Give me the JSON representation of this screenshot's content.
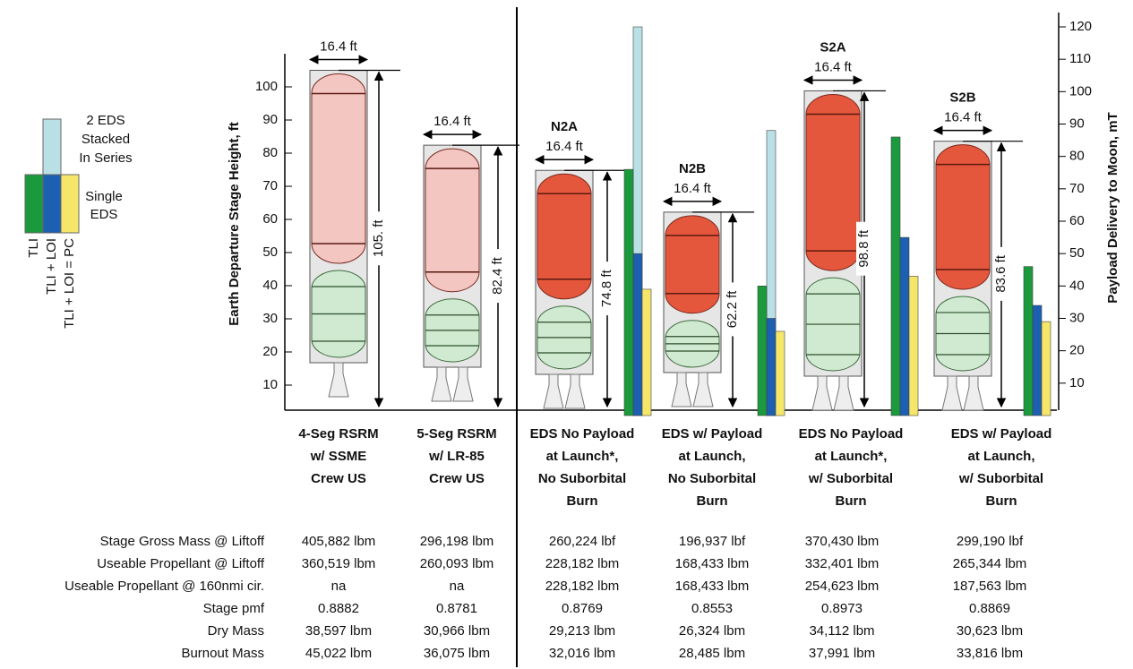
{
  "legend": {
    "stacked": [
      "2 EDS",
      "Stacked",
      "In Series"
    ],
    "single": [
      "Single",
      "EDS"
    ],
    "tli": "TLI",
    "tli_loi": "TLI + LOI",
    "tli_loi_pc": "TLI + LOI = PC",
    "colors": {
      "tli": "#1a9a3c",
      "tli_loi": "#1d5fb0",
      "pc": "#f5e66a",
      "stacked": "#b9e0e4"
    }
  },
  "left_axis": {
    "label": "Earth Departure Stage Height, ft",
    "ylim": [
      0,
      110
    ],
    "yticks": [
      10,
      20,
      30,
      40,
      50,
      60,
      70,
      80,
      90,
      100
    ]
  },
  "right_axis": {
    "label": "Payload Delivery to Moon, mT",
    "ylim": [
      0,
      120
    ],
    "yticks": [
      10,
      20,
      30,
      40,
      50,
      60,
      70,
      80,
      90,
      100,
      110,
      120
    ]
  },
  "vehicles": [
    {
      "diameter_label": "16.4 ft",
      "height": 105,
      "height_label": "105. ft",
      "category": [
        "4-Seg RSRM",
        "w/ SSME",
        "Crew US"
      ]
    },
    {
      "diameter_label": "16.4 ft",
      "height": 82.4,
      "height_label": "82.4 ft",
      "category": [
        "5-Seg RSRM",
        "w/ LR-85",
        "Crew US"
      ]
    },
    {
      "name": "N2A",
      "diameter_label": "16.4 ft",
      "height": 74.8,
      "height_label": "74.8 ft",
      "category": [
        "EDS No Payload",
        "at Launch*,",
        "No Suborbital",
        "Burn"
      ],
      "payload": {
        "tli": 76,
        "tli_loi": 50,
        "stacked": 120,
        "pc": 39
      }
    },
    {
      "name": "N2B",
      "diameter_label": "16.4 ft",
      "height": 62.2,
      "height_label": "62.2 ft",
      "category": [
        "EDS w/ Payload",
        "at Launch,",
        "No Suborbital",
        "Burn"
      ],
      "payload": {
        "tli": 40,
        "tli_loi": 30,
        "stacked": 88,
        "pc": 26
      }
    },
    {
      "name": "S2A",
      "diameter_label": "16.4 ft",
      "height": 98.8,
      "height_label": "98.8 ft",
      "category": [
        "EDS No Payload",
        "at Launch*,",
        "w/ Suborbital",
        "Burn"
      ],
      "payload": {
        "tli": 86,
        "tli_loi": 55,
        "pc": 43
      }
    },
    {
      "name": "S2B",
      "diameter_label": "16.4 ft",
      "height": 83.6,
      "height_label": "83.6 ft",
      "category": [
        "EDS w/ Payload",
        "at Launch,",
        "w/ Suborbital",
        "Burn"
      ],
      "payload": {
        "tli": 46,
        "tli_loi": 34,
        "pc": 29
      }
    }
  ],
  "table": {
    "row_labels": [
      "Stage Gross Mass @ Liftoff",
      "Useable Propellant @ Liftoff",
      "Useable Propellant @ 160nmi cir.",
      "Stage pmf",
      "Dry Mass",
      "Burnout Mass"
    ],
    "rows": [
      [
        "405,882 lbm",
        "296,198 lbm",
        "260,224 lbf",
        "196,937 lbf",
        "370,430 lbm",
        "299,190 lbf"
      ],
      [
        "360,519 lbm",
        "260,093 lbm",
        "228,182 lbm",
        "168,433 lbm",
        "332,401 lbm",
        "265,344 lbm"
      ],
      [
        "na",
        "na",
        "228,182 lbm",
        "168,433 lbm",
        "254,623 lbm",
        "187,563 lbm"
      ],
      [
        "0.8882",
        "0.8781",
        "0.8769",
        "0.8553",
        "0.8973",
        "0.8869"
      ],
      [
        "38,597 lbm",
        "30,966 lbm",
        "29,213 lbm",
        "26,324 lbm",
        "34,112 lbm",
        "30,623 lbm"
      ],
      [
        "45,022 lbm",
        "36,075 lbm",
        "32,016 lbm",
        "28,485 lbm",
        "37,991 lbm",
        "33,816 lbm"
      ]
    ]
  }
}
